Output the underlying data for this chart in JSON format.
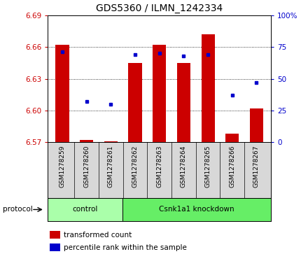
{
  "title": "GDS5360 / ILMN_1242334",
  "samples": [
    "GSM1278259",
    "GSM1278260",
    "GSM1278261",
    "GSM1278262",
    "GSM1278263",
    "GSM1278264",
    "GSM1278265",
    "GSM1278266",
    "GSM1278267"
  ],
  "transformed_count": [
    6.662,
    6.572,
    6.571,
    6.645,
    6.662,
    6.645,
    6.672,
    6.578,
    6.602
  ],
  "percentile_rank": [
    71,
    32,
    30,
    69,
    70,
    68,
    69,
    37,
    47
  ],
  "ylim": [
    6.57,
    6.69
  ],
  "yticks": [
    6.57,
    6.6,
    6.63,
    6.66,
    6.69
  ],
  "right_yticks": [
    0,
    25,
    50,
    75,
    100
  ],
  "bar_color": "#cc0000",
  "dot_color": "#0000cc",
  "bar_width": 0.55,
  "control_samples": 3,
  "knockdown_samples": 6,
  "control_label": "control",
  "knockdown_label": "Csnk1a1 knockdown",
  "legend_bar_label": "transformed count",
  "legend_dot_label": "percentile rank within the sample",
  "protocol_label": "protocol",
  "control_color": "#aaffaa",
  "knockdown_color": "#66ee66",
  "axis_label_color_left": "#cc0000",
  "axis_label_color_right": "#0000cc",
  "title_fontsize": 10,
  "tick_fontsize": 7.5,
  "label_fontsize": 7.5,
  "sample_fontsize": 6.5
}
